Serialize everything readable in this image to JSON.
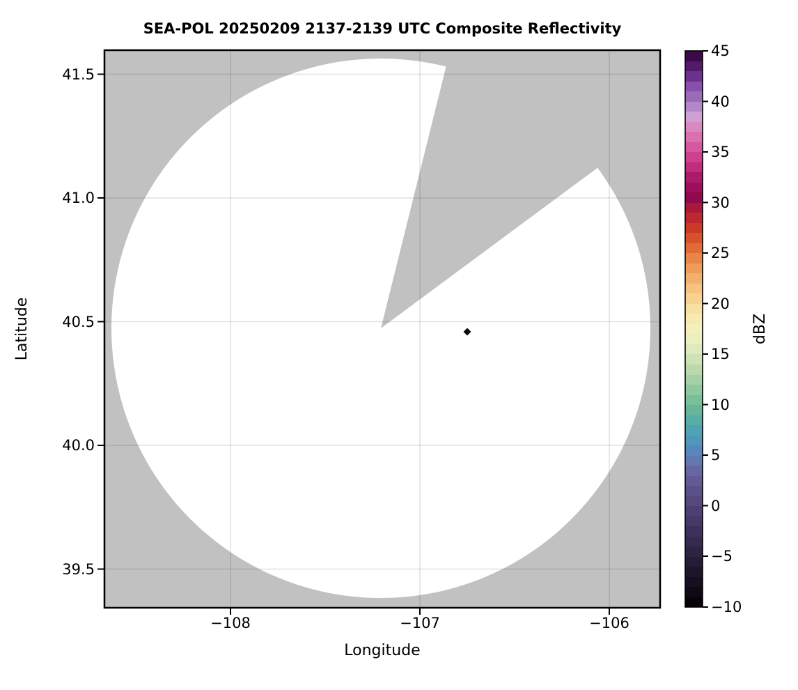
{
  "title": "SEA-POL 20250209 2137-2139 UTC Composite Reflectivity",
  "axes": {
    "xlabel": "Longitude",
    "ylabel": "Latitude",
    "xticks": [
      "−108",
      "−107",
      "−106"
    ],
    "yticks": [
      "41.5",
      "41.0",
      "40.5",
      "40.0",
      "39.5"
    ]
  },
  "colorbar": {
    "label": "dBZ",
    "min": -10,
    "max": 45,
    "tick_step": 5,
    "ticks": [
      "45",
      "40",
      "35",
      "30",
      "25",
      "20",
      "15",
      "10",
      "5",
      "0",
      "−5",
      "−10"
    ],
    "band_step_dbz": 1,
    "band_colors": [
      "#050308",
      "#0d0a14",
      "#15101f",
      "#1d162b",
      "#251c37",
      "#2d2343",
      "#352a4f",
      "#3d315b",
      "#463867",
      "#4e3f73",
      "#56477e",
      "#5c508a",
      "#625a96",
      "#6566a2",
      "#6377b0",
      "#5888bb",
      "#5097bc",
      "#50a3b4",
      "#58ada6",
      "#66b79a",
      "#79bf97",
      "#8ec89e",
      "#a4d1a6",
      "#badaae",
      "#cee2b5",
      "#dfe9bb",
      "#ebefbf",
      "#f3f0bd",
      "#f7e9b0",
      "#f8dfa2",
      "#f7d291",
      "#f5c37f",
      "#f2b06c",
      "#ee9c59",
      "#e88547",
      "#e06b37",
      "#d7522b",
      "#ca3a27",
      "#bb282d",
      "#a91839",
      "#8e0a4d",
      "#9d0f5b",
      "#ae1a6b",
      "#c02d7c",
      "#cc408d",
      "#d5589e",
      "#da70b0",
      "#d989c2",
      "#cfa0d6",
      "#b288c9",
      "#9b6ab9",
      "#8750ad",
      "#6c3090",
      "#511a6b",
      "#3b0a4a"
    ]
  },
  "colors": {
    "no_data": "#c1c1c1",
    "coverage": "#ffffff",
    "echo": "#0b0b0f",
    "grid": "rgba(0,0,0,0.10)",
    "spine": "#000000"
  },
  "chart_data": {
    "type": "heatmap",
    "title": "SEA-POL 20250209 2137-2139 UTC Composite Reflectivity",
    "xlabel": "Longitude",
    "ylabel": "Latitude",
    "xlim": [
      -108.67,
      -105.73
    ],
    "ylim": [
      39.34,
      41.6
    ],
    "xticks": [
      -108,
      -107,
      -106
    ],
    "yticks": [
      39.5,
      40.0,
      40.5,
      41.0,
      41.5
    ],
    "grid": true,
    "legend_position": "right-colorbar",
    "colorbar": {
      "label": "dBZ",
      "range": [
        -10,
        45
      ],
      "tick_step": 5
    },
    "radar_coverage": {
      "center_lon": -107.21,
      "center_lat": 40.47,
      "radius_deg_lat": 1.09,
      "blocked_sector_azimuth_deg": [
        14,
        53.5
      ],
      "no_data_color": "#c1c1c1",
      "coverage_color": "#ffffff"
    },
    "echoes": [
      {
        "lon": -106.75,
        "lat": 40.46,
        "dbz_approx": -10,
        "color": "#0b0b0f"
      }
    ]
  }
}
